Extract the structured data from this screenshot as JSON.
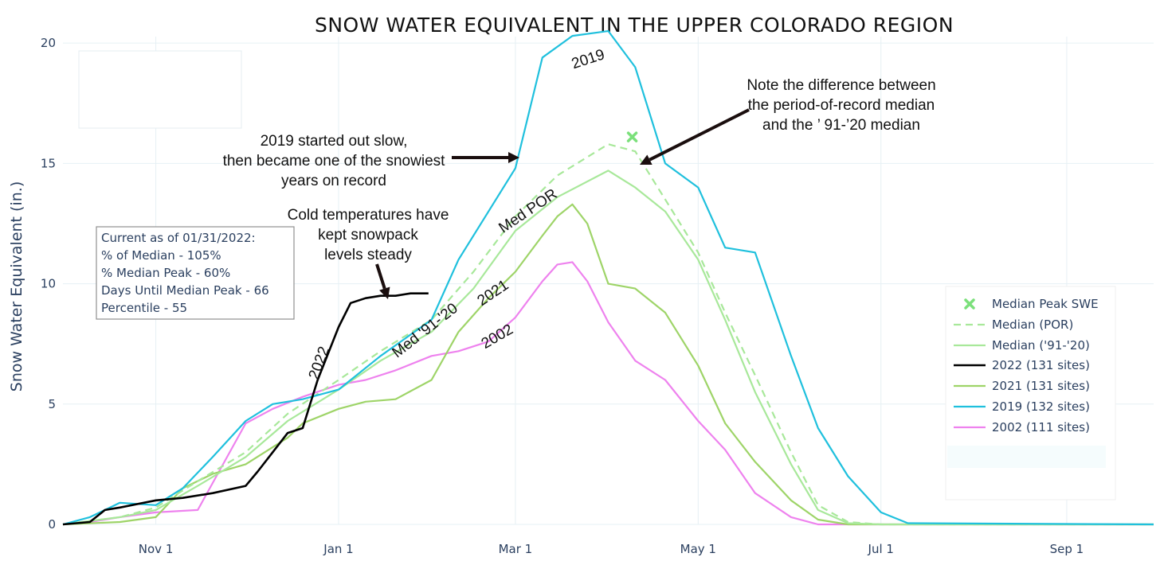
{
  "chart_data": {
    "type": "line",
    "title": "SNOW WATER EQUIVALENT IN THE UPPER COLORADO REGION",
    "xlabel": "",
    "ylabel": "Snow Water Equivalent (in.)",
    "x_ticks": [
      "Nov 1",
      "Jan 1",
      "Mar 1",
      "May 1",
      "Jul 1",
      "Sep 1"
    ],
    "y_ticks": [
      0,
      5,
      10,
      15,
      20
    ],
    "xlim": [
      "Oct 1",
      "Sep 30"
    ],
    "ylim": [
      0,
      20.6
    ],
    "grid": true,
    "legend_position": "right",
    "series": [
      {
        "name": "2002 (111 sites)",
        "color": "#ee82ee",
        "x": [
          "Oct 1",
          "Oct 10",
          "Oct 20",
          "Nov 1",
          "Nov 15",
          "Dec 1",
          "Dec 10",
          "Dec 20",
          "Jan 1",
          "Jan 10",
          "Jan 20",
          "Feb 1",
          "Feb 10",
          "Feb 20",
          "Mar 1",
          "Mar 10",
          "Mar 15",
          "Mar 20",
          "Mar 25",
          "Apr 1",
          "Apr 10",
          "Apr 20",
          "May 1",
          "May 10",
          "May 20",
          "Jun 1",
          "Jun 10",
          "Jun 15",
          "Jul 1",
          "Sep 30"
        ],
        "values": [
          0,
          0.1,
          0.3,
          0.5,
          0.6,
          4.2,
          4.8,
          5.3,
          5.8,
          6.0,
          6.4,
          7.0,
          7.2,
          7.6,
          8.6,
          10.1,
          10.8,
          10.9,
          10.1,
          8.4,
          6.8,
          6.0,
          4.3,
          3.1,
          1.3,
          0.3,
          0,
          0,
          0,
          0
        ]
      },
      {
        "name": "2021 (131 sites)",
        "color": "#9ed468",
        "x": [
          "Oct 1",
          "Oct 20",
          "Nov 1",
          "Nov 10",
          "Nov 20",
          "Dec 1",
          "Dec 15",
          "Dec 20",
          "Jan 1",
          "Jan 10",
          "Jan 20",
          "Feb 1",
          "Feb 10",
          "Feb 20",
          "Mar 1",
          "Mar 10",
          "Mar 15",
          "Mar 20",
          "Mar 25",
          "Apr 1",
          "Apr 10",
          "Apr 20",
          "May 1",
          "May 10",
          "May 20",
          "Jun 1",
          "Jun 10",
          "Jun 20",
          "Jul 1",
          "Sep 30"
        ],
        "values": [
          0,
          0.1,
          0.3,
          1.5,
          2.1,
          2.5,
          3.6,
          4.2,
          4.8,
          5.1,
          5.2,
          6.0,
          8.0,
          9.4,
          10.5,
          12.0,
          12.8,
          13.3,
          12.5,
          10.0,
          9.8,
          8.8,
          6.6,
          4.2,
          2.6,
          1.0,
          0.2,
          0,
          0,
          0
        ]
      },
      {
        "name": "Median ('91-'20)",
        "color": "#a8e89a",
        "x": [
          "Oct 1",
          "Oct 20",
          "Nov 1",
          "Nov 15",
          "Dec 1",
          "Dec 15",
          "Jan 1",
          "Jan 15",
          "Feb 1",
          "Feb 15",
          "Mar 1",
          "Mar 15",
          "Apr 1",
          "Apr 10",
          "Apr 20",
          "May 1",
          "May 10",
          "May 20",
          "Jun 1",
          "Jun 10",
          "Jun 20",
          "Jul 1",
          "Sep 30"
        ],
        "values": [
          0,
          0.3,
          0.6,
          1.6,
          2.8,
          4.3,
          5.6,
          6.8,
          8.0,
          9.8,
          12.2,
          13.6,
          14.7,
          14.0,
          13.0,
          11.0,
          8.5,
          5.5,
          2.5,
          0.6,
          0.05,
          0,
          0
        ]
      },
      {
        "name": "Median (POR)",
        "color": "#a8e89a",
        "dashed": true,
        "x": [
          "Oct 1",
          "Oct 20",
          "Nov 1",
          "Nov 15",
          "Dec 1",
          "Dec 15",
          "Jan 1",
          "Jan 15",
          "Feb 1",
          "Feb 15",
          "Mar 1",
          "Mar 15",
          "Apr 1",
          "Apr 10",
          "Apr 20",
          "May 1",
          "May 10",
          "May 20",
          "Jun 1",
          "Jun 10",
          "Jun 20",
          "Jul 1",
          "Sep 30"
        ],
        "values": [
          0,
          0.3,
          0.7,
          1.8,
          3.0,
          4.6,
          6.0,
          7.2,
          8.5,
          10.5,
          12.8,
          14.5,
          15.8,
          15.5,
          13.5,
          11.3,
          8.8,
          6.2,
          3.0,
          0.8,
          0.1,
          0,
          0
        ]
      },
      {
        "name": "2019 (132 sites)",
        "color": "#1fc0dd",
        "x": [
          "Oct 1",
          "Oct 10",
          "Oct 20",
          "Nov 1",
          "Nov 10",
          "Nov 20",
          "Dec 1",
          "Dec 10",
          "Dec 20",
          "Jan 1",
          "Jan 15",
          "Feb 1",
          "Feb 10",
          "Feb 20",
          "Mar 1",
          "Mar 10",
          "Mar 20",
          "Apr 1",
          "Apr 10",
          "Apr 20",
          "May 1",
          "May 10",
          "May 20",
          "Jun 1",
          "Jun 10",
          "Jun 20",
          "Jul 1",
          "Jul 10",
          "Sep 30"
        ],
        "values": [
          0,
          0.3,
          0.9,
          0.8,
          1.5,
          2.8,
          4.3,
          5.0,
          5.2,
          5.6,
          7.0,
          8.5,
          11.0,
          13.0,
          14.8,
          19.4,
          20.3,
          20.5,
          19.0,
          15.0,
          14.0,
          11.5,
          11.3,
          7.0,
          4.0,
          2.0,
          0.5,
          0.05,
          0
        ]
      },
      {
        "name": "2022 (131 sites)",
        "color": "#000000",
        "x": [
          "Oct 1",
          "Oct 10",
          "Oct 15",
          "Oct 20",
          "Nov 1",
          "Nov 10",
          "Nov 20",
          "Dec 1",
          "Dec 5",
          "Dec 10",
          "Dec 15",
          "Dec 20",
          "Dec 25",
          "Jan 1",
          "Jan 5",
          "Jan 10",
          "Jan 15",
          "Jan 20",
          "Jan 25",
          "Jan 31"
        ],
        "values": [
          0,
          0.1,
          0.6,
          0.7,
          1.0,
          1.1,
          1.3,
          1.6,
          2.2,
          3.0,
          3.8,
          4.0,
          6.0,
          8.2,
          9.2,
          9.4,
          9.5,
          9.5,
          9.6,
          9.6
        ]
      }
    ],
    "markers": [
      {
        "name": "Median Peak SWE",
        "color": "#7be07b",
        "x": "Apr 9",
        "y": 16.1
      }
    ],
    "series_labels": [
      {
        "text": "2019"
      },
      {
        "text": "Med POR"
      },
      {
        "text": "2021"
      },
      {
        "text": "Med '91-'20"
      },
      {
        "text": "2002"
      },
      {
        "text": "2022"
      }
    ],
    "annotations": [
      {
        "lines": [
          "2019 started out slow,",
          "then became one of the snowiest",
          "years on record"
        ]
      },
      {
        "lines": [
          "Note the difference between",
          "the period-of-record median",
          "and the ’ 91-’20 median"
        ]
      },
      {
        "lines": [
          "Cold temperatures have",
          "kept snowpack",
          "levels steady"
        ]
      }
    ],
    "info_box": {
      "lines": [
        "Current as of 01/31/2022:",
        "% of Median - 105%",
        "% Median Peak - 60%",
        "Days Until Median Peak - 66",
        "Percentile - 55"
      ]
    },
    "legend": [
      "Median Peak SWE",
      "Median (POR)",
      "Median ('91-'20)",
      "2022 (131 sites)",
      "2021 (131 sites)",
      "2019 (132 sites)",
      "2002 (111 sites)"
    ]
  }
}
